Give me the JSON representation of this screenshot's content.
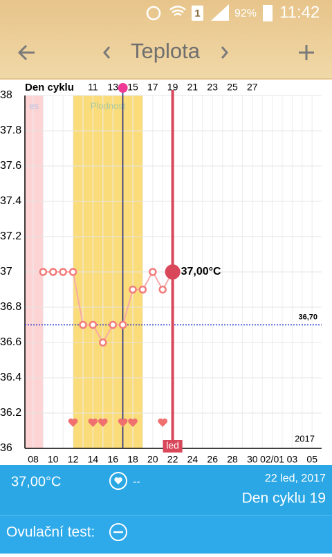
{
  "status_bar": {
    "sim": "1",
    "battery": "92%",
    "time": "11:42"
  },
  "toolbar": {
    "title": "Teplota"
  },
  "chart_data": {
    "type": "line",
    "cycle_label": "Den cyklu",
    "categories": [
      "08",
      null,
      "10",
      null,
      "12",
      null,
      "14",
      null,
      "16",
      null,
      "18",
      null,
      "20",
      null,
      "22",
      null,
      "24",
      null,
      "26",
      null,
      "28",
      null,
      "30",
      null,
      "02/01",
      null,
      "03",
      null,
      "05"
    ],
    "cycle_days": [
      null,
      null,
      null,
      null,
      null,
      null,
      "11",
      null,
      "13",
      null,
      "15",
      null,
      "17",
      null,
      "19",
      null,
      "21",
      null,
      "23",
      null,
      "25",
      null,
      "27",
      null,
      null,
      null,
      null,
      null,
      null
    ],
    "values": [
      null,
      37.0,
      37.0,
      37.0,
      37.0,
      36.7,
      36.7,
      36.6,
      36.7,
      36.7,
      36.9,
      36.9,
      37.0,
      36.9,
      37.0,
      null,
      null,
      null,
      null,
      null,
      null,
      null,
      null,
      null,
      null,
      null,
      null,
      null,
      null
    ],
    "color": "#f27c7c",
    "ylim": [
      36,
      38
    ],
    "yticks": [
      36,
      36.2,
      36.4,
      36.6,
      36.8,
      37,
      37.2,
      37.4,
      37.6,
      37.8,
      38
    ],
    "grid": true,
    "intercourse": [
      false,
      false,
      false,
      false,
      true,
      false,
      true,
      true,
      false,
      true,
      true,
      false,
      false,
      true,
      false,
      false,
      false,
      false,
      false,
      false,
      false,
      false,
      false,
      false,
      false,
      false,
      false,
      false,
      false
    ],
    "bands": [
      {
        "label": "es",
        "from": -1,
        "to": 1,
        "color": "#fdd3d3"
      },
      {
        "label": "Plodnost",
        "from": 4,
        "to": 11,
        "color": "#fbdc7a"
      }
    ],
    "markers": [
      {
        "at": 9,
        "color": "#1a237e"
      },
      {
        "at": 14,
        "color": "#d9475a",
        "label": "led",
        "value_label": "37,00°C"
      }
    ],
    "cover_line": {
      "value": 36.7,
      "label": "36,70",
      "color": "#2233cc"
    },
    "year": "2017"
  },
  "summary": {
    "temperature": "37,00°C",
    "heart": "--",
    "date": "22 led, 2017",
    "cycle_day": "Den cyklu 19"
  },
  "ovulation_test": {
    "label": "Ovulační test:"
  }
}
